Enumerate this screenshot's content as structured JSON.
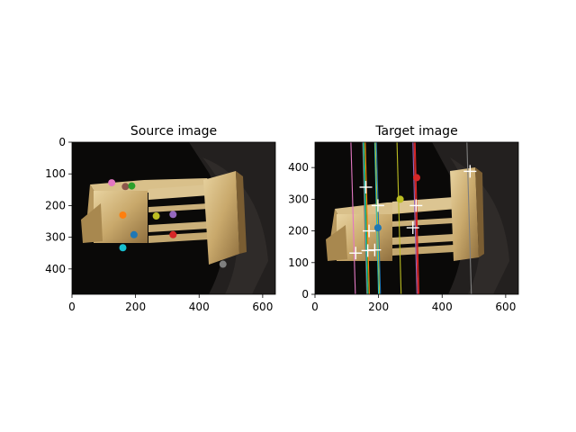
{
  "figure": {
    "source_title": "Source image",
    "target_title": "Target image"
  },
  "chart_data": [
    {
      "type": "scatter",
      "title": "Source image",
      "xlim": [
        0,
        640
      ],
      "ylim": [
        480,
        0
      ],
      "y_inverted": true,
      "grid": false,
      "x_ticks": [
        "0",
        "200",
        "400",
        "600"
      ],
      "x_tick_values": [
        0,
        200,
        400,
        600
      ],
      "y_ticks": [
        "0",
        "100",
        "200",
        "300",
        "400"
      ],
      "y_tick_values": [
        0,
        100,
        200,
        300,
        400
      ],
      "points": [
        {
          "x": 125,
          "y": 128,
          "color": "#e377c2"
        },
        {
          "x": 168,
          "y": 140,
          "color": "#8c564b"
        },
        {
          "x": 188,
          "y": 138,
          "color": "#2ca02c"
        },
        {
          "x": 160,
          "y": 230,
          "color": "#ff7f0e"
        },
        {
          "x": 265,
          "y": 233,
          "color": "#bcbd22"
        },
        {
          "x": 318,
          "y": 228,
          "color": "#9467bd"
        },
        {
          "x": 195,
          "y": 292,
          "color": "#1f77b4"
        },
        {
          "x": 318,
          "y": 292,
          "color": "#d62728"
        },
        {
          "x": 160,
          "y": 333,
          "color": "#17becf"
        },
        {
          "x": 475,
          "y": 385,
          "color": "#7f7f7f"
        }
      ]
    },
    {
      "type": "scatter",
      "title": "Target image",
      "xlim": [
        0,
        640
      ],
      "ylim": [
        0,
        480
      ],
      "y_inverted": false,
      "grid": false,
      "x_ticks": [
        "0",
        "200",
        "400",
        "600"
      ],
      "x_tick_values": [
        0,
        200,
        400,
        600
      ],
      "y_ticks": [
        "0",
        "100",
        "200",
        "300",
        "400"
      ],
      "y_tick_values": [
        0,
        100,
        200,
        300,
        400
      ],
      "points": [
        {
          "x": 198,
          "y": 210,
          "color": "#1f77b4"
        },
        {
          "x": 268,
          "y": 300,
          "color": "#bcbd22"
        },
        {
          "x": 320,
          "y": 368,
          "color": "#d62728"
        }
      ],
      "epipolar_lines": [
        {
          "x_top": 113,
          "x_bottom": 127,
          "color": "#e377c2"
        },
        {
          "x_top": 150,
          "x_bottom": 163,
          "color": "#8c564b"
        },
        {
          "x_top": 152,
          "x_bottom": 165,
          "color": "#17becf"
        },
        {
          "x_top": 155,
          "x_bottom": 168,
          "color": "#2ca02c"
        },
        {
          "x_top": 158,
          "x_bottom": 171,
          "color": "#ff7f0e"
        },
        {
          "x_top": 188,
          "x_bottom": 200,
          "color": "#17becf"
        },
        {
          "x_top": 190,
          "x_bottom": 203,
          "color": "#bcbd22"
        },
        {
          "x_top": 193,
          "x_bottom": 206,
          "color": "#1f77b4"
        },
        {
          "x_top": 258,
          "x_bottom": 271,
          "color": "#bcbd22"
        },
        {
          "x_top": 308,
          "x_bottom": 321,
          "color": "#9467bd"
        },
        {
          "x_top": 312,
          "x_bottom": 324,
          "color": "#d62728"
        },
        {
          "x_top": 315,
          "x_bottom": 327,
          "color": "#d62728"
        },
        {
          "x_top": 478,
          "x_bottom": 492,
          "color": "#7f7f7f"
        }
      ],
      "crosses": [
        {
          "x": 128,
          "y": 130
        },
        {
          "x": 160,
          "y": 338
        },
        {
          "x": 166,
          "y": 138
        },
        {
          "x": 170,
          "y": 200
        },
        {
          "x": 188,
          "y": 140
        },
        {
          "x": 198,
          "y": 280
        },
        {
          "x": 308,
          "y": 210
        },
        {
          "x": 318,
          "y": 280
        },
        {
          "x": 488,
          "y": 388
        }
      ]
    }
  ]
}
